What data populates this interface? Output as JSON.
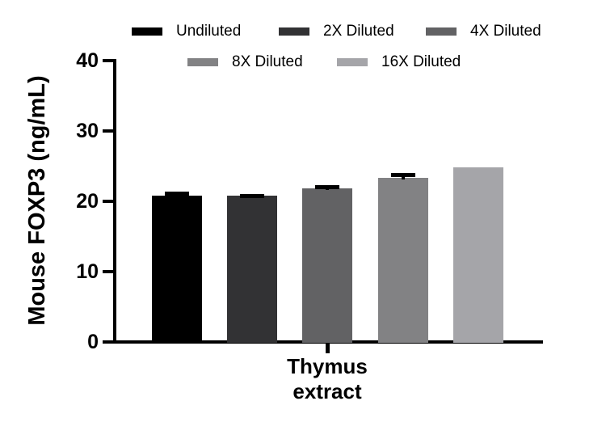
{
  "figure": {
    "background": "#ffffff",
    "text_color": "#000000"
  },
  "chart_data": {
    "type": "bar",
    "title": "",
    "ylabel": "Mouse FOXP3 (ng/mL)",
    "xlabel": "",
    "categories": [
      "Thymus extract"
    ],
    "series": [
      {
        "name": "Undiluted",
        "color": "#000000",
        "values": [
          20.8
        ],
        "error": [
          0.6
        ]
      },
      {
        "name": "2X Diluted",
        "color": "#323234",
        "values": [
          20.8
        ],
        "error": [
          0.2
        ]
      },
      {
        "name": "4X Diluted",
        "color": "#626264",
        "values": [
          21.8
        ],
        "error": [
          0.5
        ]
      },
      {
        "name": "8X Diluted",
        "color": "#828284",
        "values": [
          23.3
        ],
        "error": [
          0.7
        ]
      },
      {
        "name": "16X Diluted",
        "color": "#a5a5a9",
        "values": [
          24.8
        ],
        "error": [
          0
        ]
      }
    ],
    "ylim": [
      0,
      40
    ],
    "yticks": [
      0,
      10,
      20,
      30,
      40
    ],
    "grid": false,
    "legend_position": "top",
    "error_bar_style": "caps above bars only",
    "axis_color": "#000000"
  }
}
